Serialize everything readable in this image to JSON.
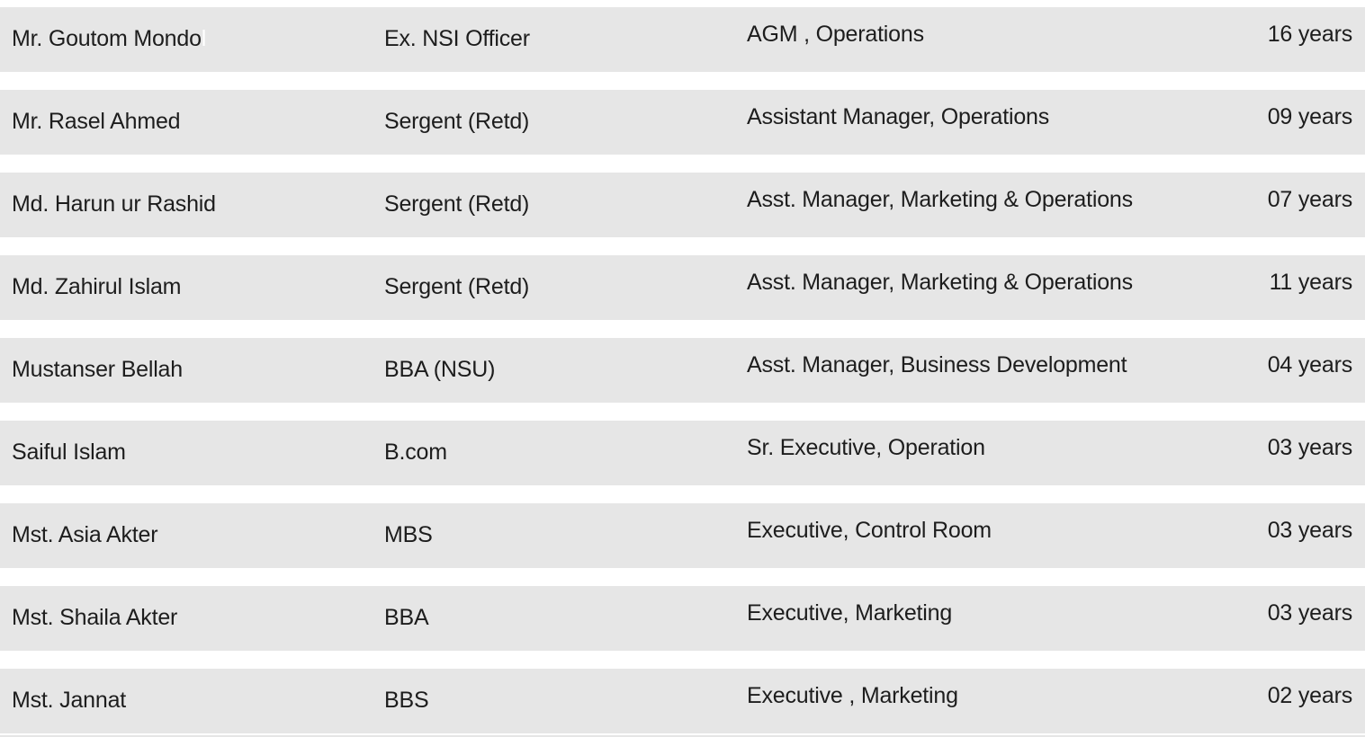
{
  "colors": {
    "row_background": "#e6e6e6",
    "page_background": "#ffffff",
    "text": "#1d1d1d"
  },
  "table": {
    "rows": [
      {
        "name": "Mr. Goutom Mondo",
        "name_white_char": "l",
        "qualification": "Ex. NSI Officer",
        "designation": "AGM , Operations",
        "experience": "16 years"
      },
      {
        "name": "Mr. Rasel Ahmed",
        "qualification": "Sergent (Retd)",
        "designation": "Assistant Manager, Operations",
        "experience": "09 years"
      },
      {
        "name": "Md. Harun ur Rashid",
        "qualification": "Sergent (Retd)",
        "designation": "Asst. Manager, Marketing & Operations",
        "experience": "07 years"
      },
      {
        "name": "Md. Zahirul Islam",
        "qualification": "Sergent (Retd)",
        "designation": "Asst. Manager, Marketing & Operations",
        "experience": "11 years"
      },
      {
        "name": "Mustanser Bellah",
        "qualification": "BBA (NSU)",
        "designation": "Asst. Manager, Business Development",
        "experience": "04 years"
      },
      {
        "name": "Saiful Islam",
        "qualification": "B.com",
        "designation": "Sr. Executive, Operation",
        "experience": "03 years"
      },
      {
        "name": "Mst. Asia Akter",
        "qualification": "MBS",
        "designation": "Executive, Control Room",
        "experience": "03 years"
      },
      {
        "name": "Mst. Shaila Akter",
        "qualification": "BBA",
        "designation": "Executive, Marketing",
        "experience": "03 years"
      },
      {
        "name": "Mst. Jannat",
        "qualification": "BBS",
        "designation": "Executive , Marketing",
        "experience": "02 years"
      }
    ]
  }
}
